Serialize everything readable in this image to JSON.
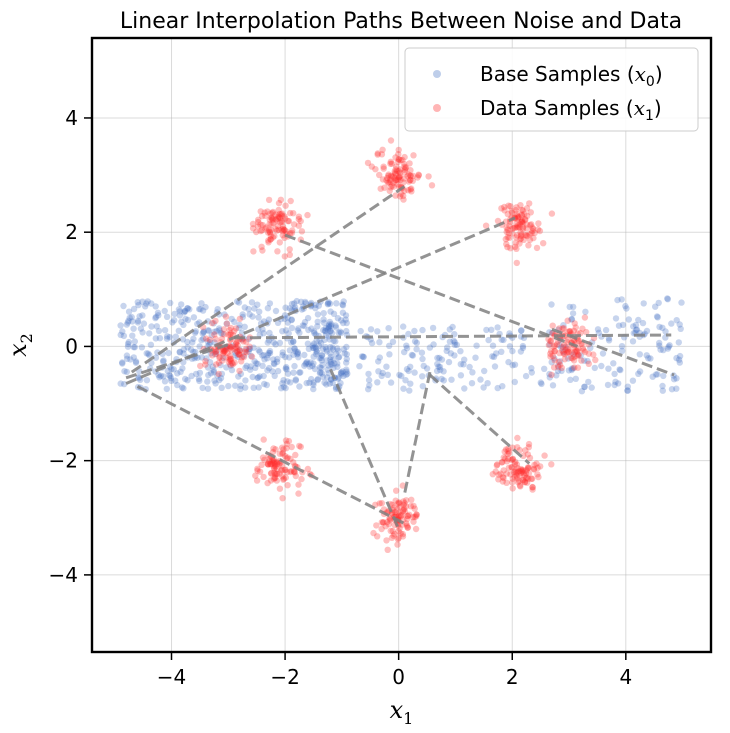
{
  "chart_data": {
    "type": "scatter",
    "title": "Linear Interpolation Paths Between Noise and Data",
    "xlabel": "x",
    "xlabel_sub": "1",
    "ylabel": "x",
    "ylabel_sub": "2",
    "xlim": [
      -5.4,
      5.5
    ],
    "ylim": [
      -5.35,
      5.4
    ],
    "xticks": [
      -4,
      -2,
      0,
      2,
      4
    ],
    "yticks": [
      -4,
      -2,
      0,
      2,
      4
    ],
    "xtick_labels": [
      "−4",
      "−2",
      "0",
      "2",
      "4"
    ],
    "ytick_labels": [
      "−4",
      "−2",
      "0",
      "2",
      "4"
    ],
    "grid": true,
    "legend": {
      "placement": "top-right",
      "entries": [
        {
          "text": "Base Samples (",
          "var": "x",
          "sub": "0",
          "close": ")",
          "color": "#4472c4"
        },
        {
          "text": "Data Samples (",
          "var": "x",
          "sub": "1",
          "close": ")",
          "color": "#ff2a2a"
        }
      ]
    },
    "series": [
      {
        "name": "Base Samples (x0)",
        "color": "#4472c4",
        "opacity": 0.3,
        "description_regions": [
          {
            "x": [
              -4.9,
              -2.3
            ],
            "y": [
              -0.75,
              0.8
            ],
            "density": 300
          },
          {
            "x": [
              -2.3,
              -0.9
            ],
            "y": [
              -0.75,
              0.8
            ],
            "density": 200
          },
          {
            "x": [
              -1.6,
              -0.9
            ],
            "y": [
              -0.75,
              0.8
            ],
            "density": 60
          },
          {
            "x": [
              -0.7,
              1.0
            ],
            "y": [
              -0.8,
              0.35
            ],
            "density": 90
          },
          {
            "x": [
              0.9,
              2.4
            ],
            "y": [
              -0.75,
              0.35
            ],
            "density": 50
          },
          {
            "x": [
              2.5,
              4.1
            ],
            "y": [
              -0.8,
              0.85
            ],
            "density": 80
          },
          {
            "x": [
              4.1,
              5.0
            ],
            "y": [
              -0.8,
              0.85
            ],
            "density": 60
          }
        ]
      },
      {
        "name": "Data Samples (x1)",
        "color": "#ff2a2a",
        "opacity": 0.3,
        "clusters": [
          {
            "cx": 0.0,
            "cy": 3.0,
            "sd": 0.2,
            "n": 100
          },
          {
            "cx": 2.12,
            "cy": 2.12,
            "sd": 0.2,
            "n": 100
          },
          {
            "cx": 3.0,
            "cy": 0.0,
            "sd": 0.2,
            "n": 100
          },
          {
            "cx": 2.12,
            "cy": -2.12,
            "sd": 0.2,
            "n": 100
          },
          {
            "cx": 0.0,
            "cy": -3.0,
            "sd": 0.2,
            "n": 100
          },
          {
            "cx": -2.12,
            "cy": -2.12,
            "sd": 0.2,
            "n": 100
          },
          {
            "cx": -2.12,
            "cy": 2.12,
            "sd": 0.2,
            "n": 100
          },
          {
            "cx": -3.0,
            "cy": 0.0,
            "sd": 0.2,
            "n": 100
          }
        ]
      }
    ],
    "interpolation_paths": [
      {
        "from": [
          -4.7,
          -0.45
        ],
        "to": [
          0.1,
          2.8
        ]
      },
      {
        "from": [
          -4.8,
          -0.65
        ],
        "to": [
          2.05,
          2.25
        ]
      },
      {
        "from": [
          -4.8,
          -0.55
        ],
        "to": [
          -2.95,
          0.05
        ]
      },
      {
        "from": [
          -2.0,
          1.95
        ],
        "to": [
          3.15,
          0.0
        ]
      },
      {
        "from": [
          -2.9,
          0.15
        ],
        "to": [
          4.8,
          0.2
        ]
      },
      {
        "from": [
          2.7,
          0.3
        ],
        "to": [
          4.85,
          -0.5
        ]
      },
      {
        "from": [
          -4.6,
          -0.7
        ],
        "to": [
          0.1,
          -3.1
        ]
      },
      {
        "from": [
          -1.2,
          -0.4
        ],
        "to": [
          0.0,
          -3.2
        ]
      },
      {
        "from": [
          0.55,
          -0.45
        ],
        "to": [
          0.1,
          -2.6
        ]
      },
      {
        "from": [
          0.55,
          -0.5
        ],
        "to": [
          2.3,
          -2.05
        ]
      }
    ]
  }
}
